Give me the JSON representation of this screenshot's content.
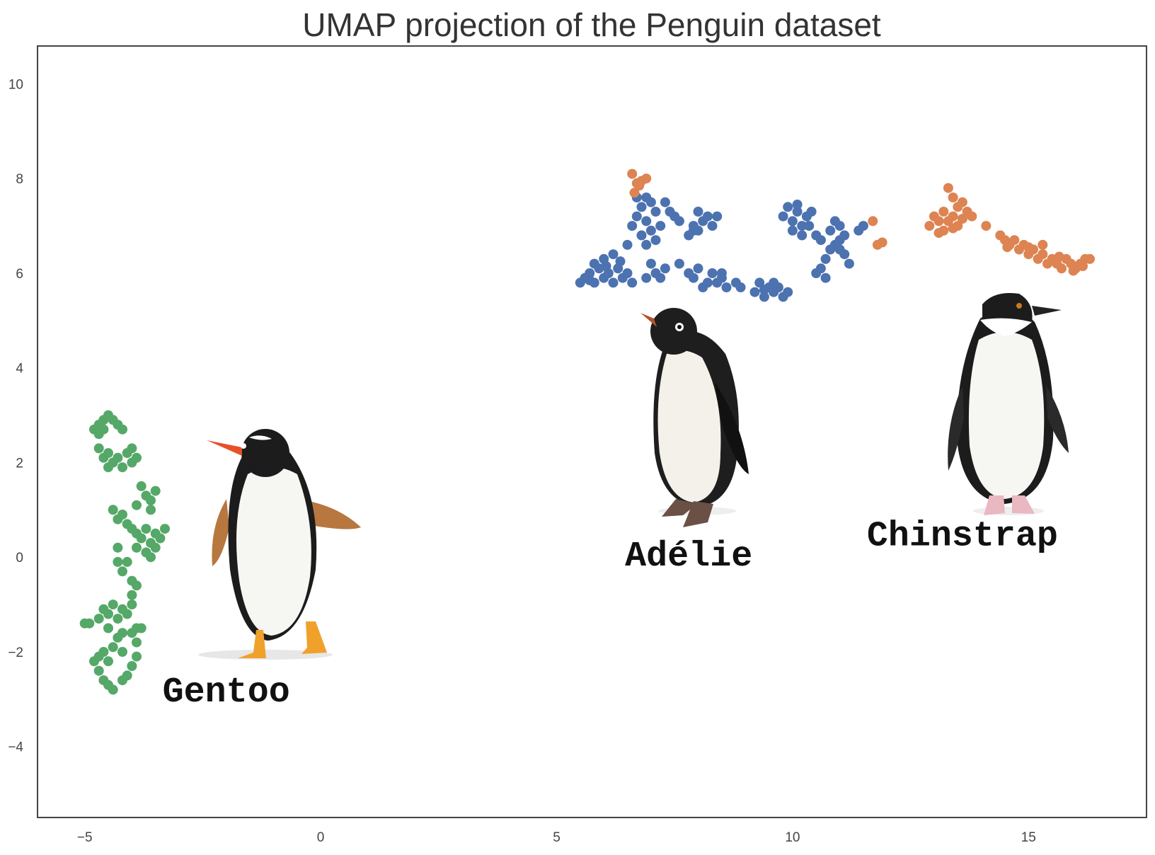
{
  "chart_data": {
    "type": "scatter",
    "title": "UMAP projection of the Penguin dataset",
    "xlabel": "",
    "ylabel": "",
    "xlim": [
      -6,
      17.5
    ],
    "ylim": [
      -5.5,
      10.8
    ],
    "grid": false,
    "legend": "none",
    "x_ticks": [
      {
        "value": -5,
        "label": "−5"
      },
      {
        "value": 0,
        "label": "0"
      },
      {
        "value": 5,
        "label": "5"
      },
      {
        "value": 10,
        "label": "10"
      },
      {
        "value": 15,
        "label": "15"
      }
    ],
    "y_ticks": [
      {
        "value": -4,
        "label": "−4"
      },
      {
        "value": -2,
        "label": "−2"
      },
      {
        "value": 0,
        "label": "0"
      },
      {
        "value": 2,
        "label": "2"
      },
      {
        "value": 4,
        "label": "4"
      },
      {
        "value": 6,
        "label": "6"
      },
      {
        "value": 8,
        "label": "8"
      },
      {
        "value": 10,
        "label": "10"
      }
    ],
    "series": [
      {
        "color": "#4c72b0",
        "points": [
          [
            5.5,
            5.8
          ],
          [
            5.6,
            5.9
          ],
          [
            5.7,
            6.0
          ],
          [
            5.8,
            5.8
          ],
          [
            5.9,
            6.1
          ],
          [
            6.0,
            5.9
          ],
          [
            5.8,
            6.2
          ],
          [
            6.1,
            6.0
          ],
          [
            6.2,
            5.8
          ],
          [
            6.3,
            6.1
          ],
          [
            6.4,
            5.9
          ],
          [
            6.0,
            6.3
          ],
          [
            6.2,
            6.4
          ],
          [
            6.5,
            6.0
          ],
          [
            6.6,
            5.8
          ],
          [
            5.7,
            5.85
          ],
          [
            6.05,
            6.15
          ],
          [
            6.35,
            6.25
          ],
          [
            6.6,
            7.0
          ],
          [
            6.7,
            7.2
          ],
          [
            6.8,
            7.4
          ],
          [
            6.9,
            7.1
          ],
          [
            7.0,
            7.5
          ],
          [
            6.8,
            6.8
          ],
          [
            7.1,
            7.3
          ],
          [
            7.2,
            7.0
          ],
          [
            6.9,
            6.6
          ],
          [
            7.0,
            6.9
          ],
          [
            6.7,
            7.6
          ],
          [
            6.9,
            7.6
          ],
          [
            7.1,
            6.7
          ],
          [
            7.3,
            7.5
          ],
          [
            7.4,
            7.3
          ],
          [
            6.5,
            6.6
          ],
          [
            7.5,
            7.2
          ],
          [
            7.6,
            7.1
          ],
          [
            7.0,
            6.2
          ],
          [
            7.1,
            6.0
          ],
          [
            7.2,
            5.9
          ],
          [
            7.3,
            6.1
          ],
          [
            6.9,
            5.9
          ],
          [
            7.6,
            6.2
          ],
          [
            7.8,
            6.0
          ],
          [
            7.9,
            5.9
          ],
          [
            8.0,
            6.1
          ],
          [
            8.2,
            5.8
          ],
          [
            8.3,
            6.0
          ],
          [
            8.1,
            5.7
          ],
          [
            8.4,
            5.8
          ],
          [
            8.5,
            5.9
          ],
          [
            8.6,
            5.7
          ],
          [
            8.8,
            5.8
          ],
          [
            8.9,
            5.7
          ],
          [
            8.5,
            6.0
          ],
          [
            7.8,
            6.8
          ],
          [
            7.9,
            7.0
          ],
          [
            8.0,
            6.9
          ],
          [
            8.1,
            7.1
          ],
          [
            8.2,
            7.2
          ],
          [
            8.0,
            7.3
          ],
          [
            8.3,
            7.0
          ],
          [
            8.4,
            7.2
          ],
          [
            7.9,
            6.9
          ],
          [
            9.2,
            5.6
          ],
          [
            9.4,
            5.5
          ],
          [
            9.5,
            5.7
          ],
          [
            9.6,
            5.6
          ],
          [
            9.7,
            5.7
          ],
          [
            9.8,
            5.5
          ],
          [
            9.9,
            5.6
          ],
          [
            9.3,
            5.8
          ],
          [
            9.6,
            5.8
          ],
          [
            9.4,
            5.65
          ],
          [
            9.8,
            7.2
          ],
          [
            9.9,
            7.4
          ],
          [
            10.0,
            7.1
          ],
          [
            10.1,
            7.3
          ],
          [
            10.2,
            7.0
          ],
          [
            10.0,
            6.9
          ],
          [
            10.3,
            7.2
          ],
          [
            10.4,
            7.3
          ],
          [
            10.2,
            6.8
          ],
          [
            10.1,
            7.45
          ],
          [
            10.35,
            7.0
          ],
          [
            10.5,
            6.0
          ],
          [
            10.6,
            6.1
          ],
          [
            10.7,
            6.3
          ],
          [
            10.8,
            6.5
          ],
          [
            10.9,
            6.6
          ],
          [
            11.0,
            6.7
          ],
          [
            11.1,
            6.4
          ],
          [
            10.6,
            6.7
          ],
          [
            10.8,
            6.9
          ],
          [
            10.9,
            7.1
          ],
          [
            11.0,
            7.0
          ],
          [
            11.1,
            6.8
          ],
          [
            11.2,
            6.2
          ],
          [
            10.7,
            5.9
          ],
          [
            11.4,
            6.9
          ],
          [
            11.5,
            7.0
          ],
          [
            11.0,
            6.5
          ],
          [
            10.5,
            6.8
          ]
        ]
      },
      {
        "color": "#dd8452",
        "points": [
          [
            6.6,
            8.1
          ],
          [
            6.7,
            7.9
          ],
          [
            6.8,
            7.95
          ],
          [
            6.9,
            8.0
          ],
          [
            6.65,
            7.7
          ],
          [
            6.75,
            7.85
          ],
          [
            11.7,
            7.1
          ],
          [
            11.8,
            6.6
          ],
          [
            11.9,
            6.65
          ],
          [
            12.9,
            7.0
          ],
          [
            13.0,
            7.2
          ],
          [
            13.1,
            7.1
          ],
          [
            13.2,
            7.3
          ],
          [
            13.3,
            7.1
          ],
          [
            13.3,
            7.8
          ],
          [
            13.4,
            7.6
          ],
          [
            13.5,
            7.4
          ],
          [
            13.4,
            7.2
          ],
          [
            13.6,
            7.5
          ],
          [
            13.7,
            7.3
          ],
          [
            13.2,
            6.9
          ],
          [
            13.5,
            7.0
          ],
          [
            13.8,
            7.2
          ],
          [
            13.4,
            6.95
          ],
          [
            13.1,
            6.85
          ],
          [
            13.6,
            7.15
          ],
          [
            14.1,
            7.0
          ],
          [
            14.4,
            6.8
          ],
          [
            14.5,
            6.7
          ],
          [
            14.6,
            6.6
          ],
          [
            14.7,
            6.7
          ],
          [
            14.8,
            6.5
          ],
          [
            14.9,
            6.6
          ],
          [
            15.0,
            6.4
          ],
          [
            15.1,
            6.5
          ],
          [
            15.2,
            6.3
          ],
          [
            15.3,
            6.4
          ],
          [
            15.4,
            6.2
          ],
          [
            15.5,
            6.3
          ],
          [
            15.6,
            6.2
          ],
          [
            15.7,
            6.1
          ],
          [
            15.8,
            6.3
          ],
          [
            15.9,
            6.2
          ],
          [
            16.0,
            6.1
          ],
          [
            16.1,
            6.2
          ],
          [
            16.2,
            6.3
          ],
          [
            15.3,
            6.6
          ],
          [
            15.0,
            6.55
          ],
          [
            16.3,
            6.3
          ],
          [
            14.55,
            6.55
          ],
          [
            15.65,
            6.35
          ],
          [
            15.95,
            6.05
          ],
          [
            16.15,
            6.15
          ]
        ]
      },
      {
        "color": "#55a868",
        "points": [
          [
            -4.8,
            2.7
          ],
          [
            -4.7,
            2.8
          ],
          [
            -4.6,
            2.9
          ],
          [
            -4.5,
            3.0
          ],
          [
            -4.4,
            2.9
          ],
          [
            -4.3,
            2.8
          ],
          [
            -4.2,
            2.7
          ],
          [
            -4.7,
            2.6
          ],
          [
            -4.6,
            2.7
          ],
          [
            -4.7,
            2.3
          ],
          [
            -4.6,
            2.1
          ],
          [
            -4.5,
            2.2
          ],
          [
            -4.4,
            2.0
          ],
          [
            -4.3,
            2.1
          ],
          [
            -4.2,
            1.9
          ],
          [
            -4.1,
            2.2
          ],
          [
            -4.0,
            2.3
          ],
          [
            -3.9,
            2.1
          ],
          [
            -4.5,
            1.9
          ],
          [
            -4.0,
            2.0
          ],
          [
            -3.8,
            1.5
          ],
          [
            -3.7,
            1.3
          ],
          [
            -3.6,
            1.2
          ],
          [
            -3.5,
            1.4
          ],
          [
            -3.6,
            1.0
          ],
          [
            -3.9,
            1.1
          ],
          [
            -4.4,
            1.0
          ],
          [
            -4.3,
            0.8
          ],
          [
            -4.2,
            0.9
          ],
          [
            -4.1,
            0.7
          ],
          [
            -4.0,
            0.6
          ],
          [
            -3.9,
            0.5
          ],
          [
            -3.8,
            0.4
          ],
          [
            -3.7,
            0.6
          ],
          [
            -3.6,
            0.3
          ],
          [
            -3.5,
            0.5
          ],
          [
            -3.4,
            0.4
          ],
          [
            -3.5,
            0.2
          ],
          [
            -3.7,
            0.1
          ],
          [
            -3.6,
            0.0
          ],
          [
            -3.3,
            0.6
          ],
          [
            -3.9,
            0.2
          ],
          [
            -4.3,
            0.2
          ],
          [
            -4.3,
            -0.1
          ],
          [
            -4.2,
            -0.3
          ],
          [
            -4.1,
            -0.1
          ],
          [
            -4.0,
            -0.5
          ],
          [
            -3.9,
            -0.6
          ],
          [
            -4.0,
            -0.8
          ],
          [
            -4.6,
            -1.1
          ],
          [
            -4.5,
            -1.2
          ],
          [
            -4.4,
            -1.0
          ],
          [
            -4.3,
            -1.3
          ],
          [
            -4.2,
            -1.1
          ],
          [
            -4.1,
            -1.2
          ],
          [
            -4.0,
            -1.0
          ],
          [
            -4.7,
            -1.3
          ],
          [
            -4.5,
            -1.5
          ],
          [
            -4.9,
            -1.4
          ],
          [
            -5.0,
            -1.4
          ],
          [
            -4.2,
            -1.6
          ],
          [
            -4.0,
            -1.6
          ],
          [
            -3.9,
            -1.5
          ],
          [
            -3.9,
            -1.8
          ],
          [
            -3.8,
            -1.5
          ],
          [
            -4.4,
            -1.9
          ],
          [
            -4.3,
            -1.7
          ],
          [
            -4.2,
            -2.0
          ],
          [
            -4.7,
            -2.1
          ],
          [
            -4.6,
            -2.0
          ],
          [
            -4.5,
            -2.2
          ],
          [
            -4.7,
            -2.4
          ],
          [
            -4.6,
            -2.6
          ],
          [
            -4.5,
            -2.7
          ],
          [
            -4.4,
            -2.8
          ],
          [
            -4.2,
            -2.6
          ],
          [
            -4.1,
            -2.5
          ],
          [
            -4.0,
            -2.3
          ],
          [
            -3.9,
            -2.1
          ],
          [
            -4.8,
            -2.2
          ]
        ]
      }
    ],
    "annotations": [
      {
        "text": "Gentoo",
        "x": -2.0,
        "y": -3.05
      },
      {
        "text": "Adélie",
        "x": 7.8,
        "y": -0.18
      },
      {
        "text": "Chinstrap",
        "x": 13.6,
        "y": 0.25
      }
    ]
  }
}
